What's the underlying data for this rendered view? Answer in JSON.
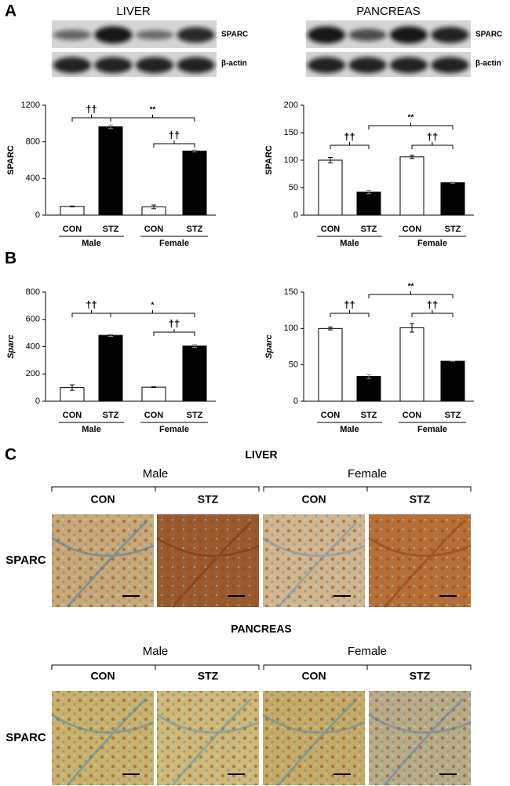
{
  "panels": {
    "a": "A",
    "b": "B",
    "c": "C"
  },
  "blots": [
    {
      "title": "LIVER",
      "rows": [
        "SPARC",
        "β-actin"
      ]
    },
    {
      "title": "PANCREAS",
      "rows": [
        "SPARC",
        "β-actin"
      ]
    }
  ],
  "chart_data": [
    {
      "type": "bar",
      "ylabel": "SPARC",
      "ylabel_italic": false,
      "categories": [
        "CON",
        "STZ",
        "CON",
        "STZ"
      ],
      "groups": [
        "Male",
        "Female"
      ],
      "values": [
        95,
        965,
        90,
        700
      ],
      "errors": [
        5,
        20,
        20,
        10
      ],
      "colors": [
        "#ffffff",
        "#000000",
        "#ffffff",
        "#000000"
      ],
      "ylim": [
        0,
        1200
      ],
      "yticks": [
        0,
        400,
        800,
        1200
      ],
      "annotations": [
        "††",
        "**",
        "††"
      ]
    },
    {
      "type": "bar",
      "ylabel": "SPARC",
      "ylabel_italic": false,
      "categories": [
        "CON",
        "STZ",
        "CON",
        "STZ"
      ],
      "groups": [
        "Male",
        "Female"
      ],
      "values": [
        100,
        42,
        106,
        59
      ],
      "errors": [
        5,
        3,
        3,
        1
      ],
      "colors": [
        "#ffffff",
        "#000000",
        "#ffffff",
        "#000000"
      ],
      "ylim": [
        0,
        200
      ],
      "yticks": [
        0,
        50,
        100,
        150,
        200
      ],
      "annotations": [
        "††",
        "**",
        "††"
      ]
    },
    {
      "type": "bar",
      "ylabel": "Sparc",
      "ylabel_italic": true,
      "categories": [
        "CON",
        "STZ",
        "CON",
        "STZ"
      ],
      "groups": [
        "Male",
        "Female"
      ],
      "values": [
        100,
        483,
        103,
        405
      ],
      "errors": [
        20,
        8,
        3,
        10
      ],
      "colors": [
        "#ffffff",
        "#000000",
        "#ffffff",
        "#000000"
      ],
      "ylim": [
        0,
        800
      ],
      "yticks": [
        0,
        200,
        400,
        600,
        800
      ],
      "annotations": [
        "††",
        "*",
        "††"
      ]
    },
    {
      "type": "bar",
      "ylabel": "Sparc",
      "ylabel_italic": true,
      "categories": [
        "CON",
        "STZ",
        "CON",
        "STZ"
      ],
      "groups": [
        "Male",
        "Female"
      ],
      "values": [
        100,
        34,
        101,
        55
      ],
      "errors": [
        2,
        3,
        6,
        0
      ],
      "colors": [
        "#ffffff",
        "#000000",
        "#ffffff",
        "#000000"
      ],
      "ylim": [
        0,
        150
      ],
      "yticks": [
        0,
        50,
        100,
        150
      ],
      "annotations": [
        "††",
        "**",
        "††"
      ]
    }
  ],
  "histology": [
    {
      "title": "LIVER",
      "groups": [
        "Male",
        "Female"
      ],
      "columns": [
        "CON",
        "STZ",
        "CON",
        "STZ"
      ],
      "row_label": "SPARC"
    },
    {
      "title": "PANCREAS",
      "groups": [
        "Male",
        "Female"
      ],
      "columns": [
        "CON",
        "STZ",
        "CON",
        "STZ"
      ],
      "row_label": "SPARC"
    }
  ]
}
